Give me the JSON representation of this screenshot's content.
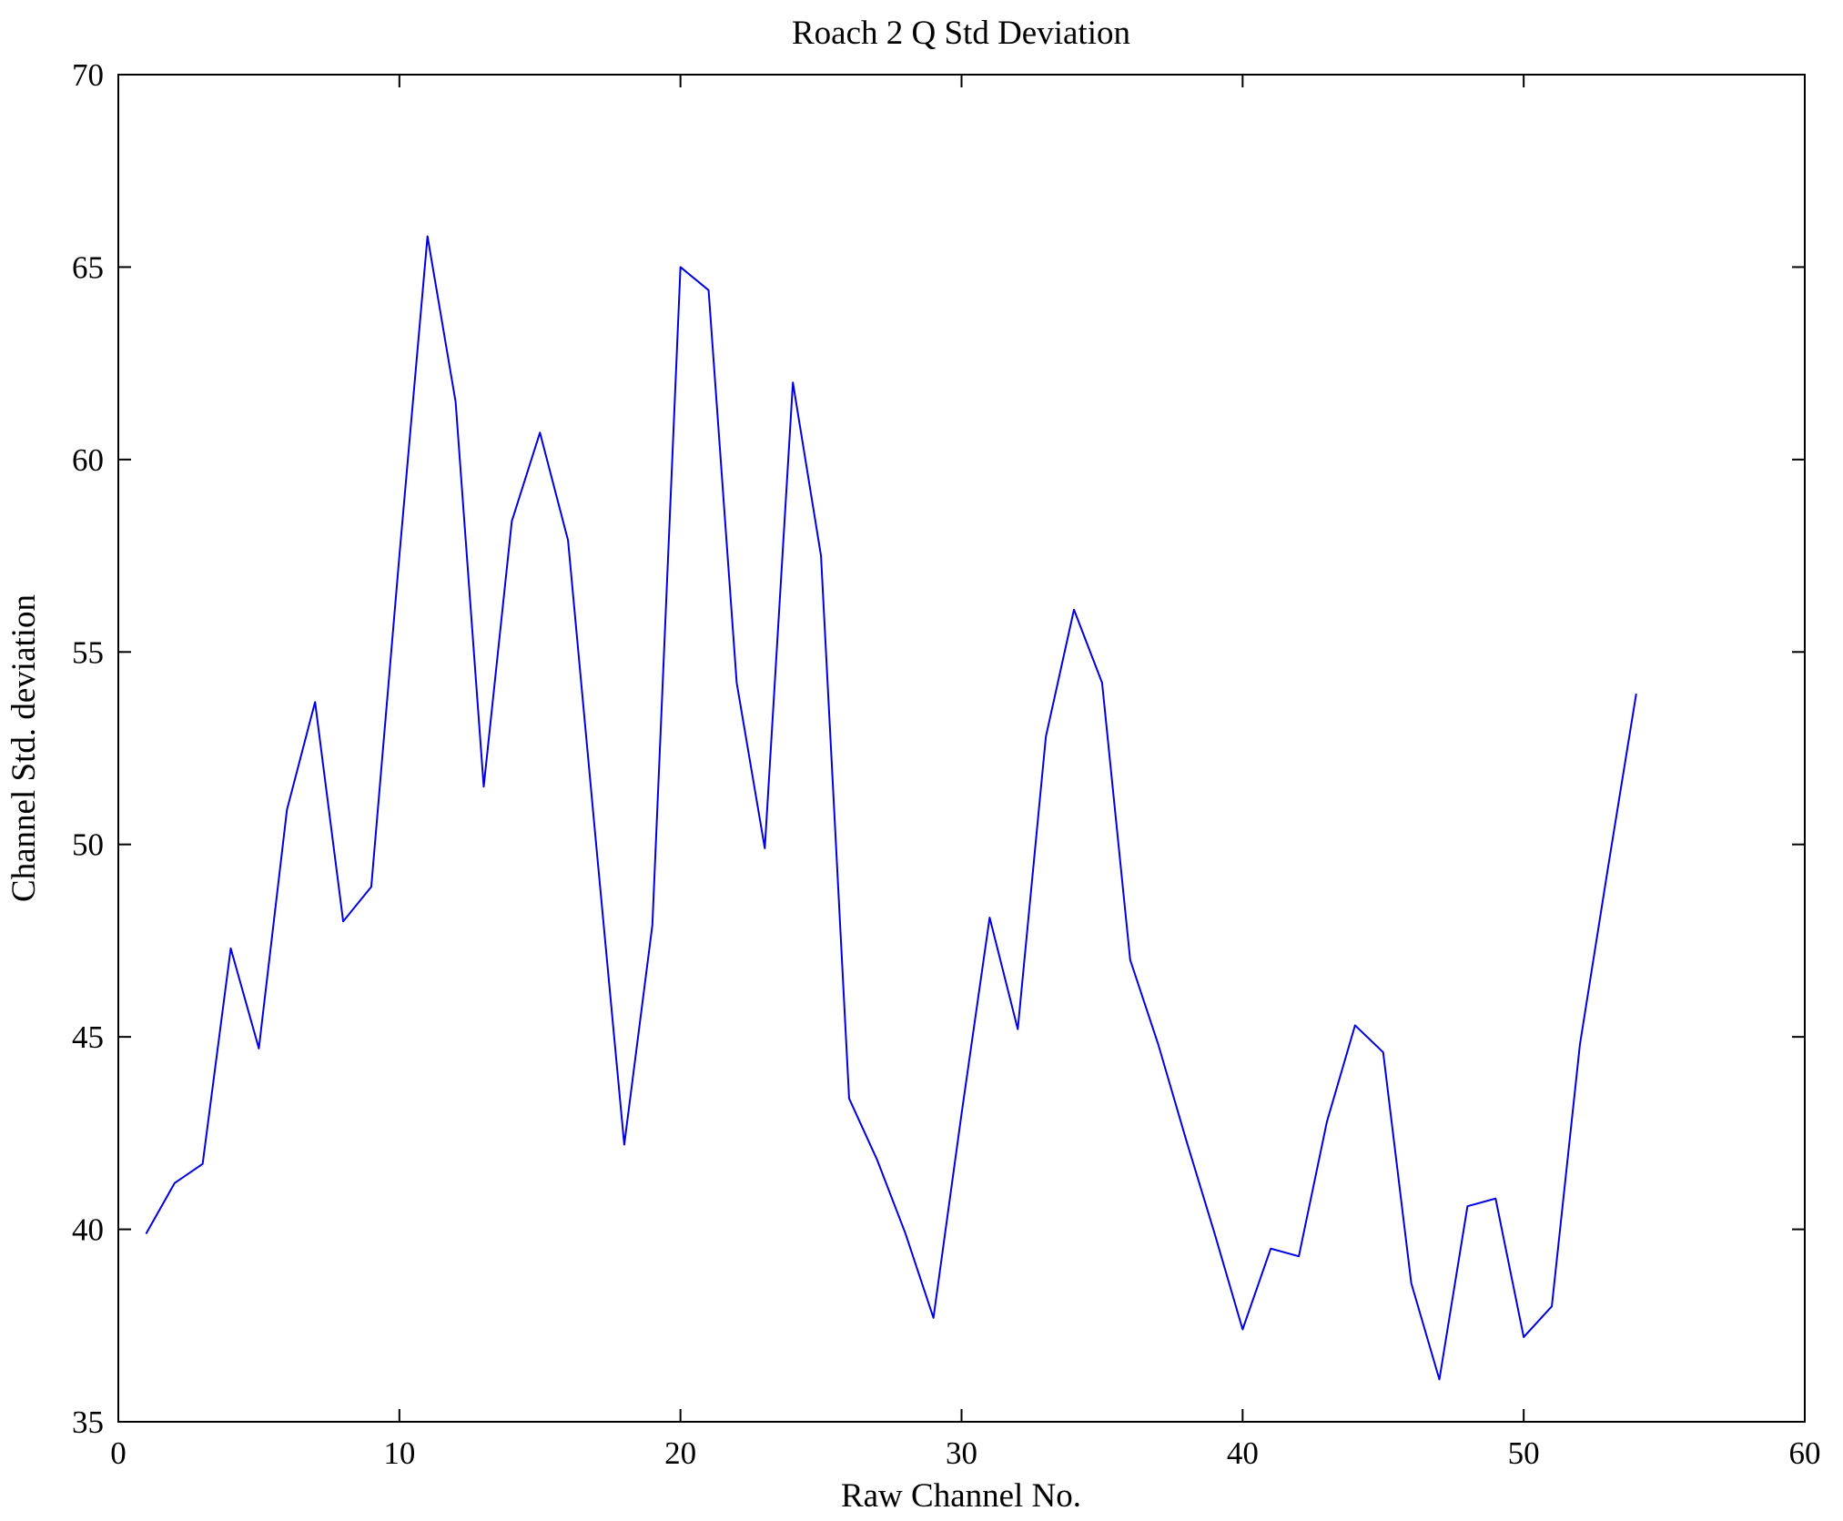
{
  "figure": {
    "title": "Roach 2 Q Std Deviation",
    "xlabel": "Raw Channel No.",
    "ylabel": "Channel Std. deviation"
  },
  "chart_data": {
    "type": "line",
    "title": "Roach 2 Q Std Deviation",
    "xlabel": "Raw Channel No.",
    "ylabel": "Channel Std. deviation",
    "xlim": [
      0,
      60
    ],
    "ylim": [
      35,
      70
    ],
    "xticks": [
      0,
      10,
      20,
      30,
      40,
      50,
      60
    ],
    "yticks": [
      35,
      40,
      45,
      50,
      55,
      60,
      65,
      70
    ],
    "grid": false,
    "legend": null,
    "frame_color": "#000000",
    "line_color": "#0000e0",
    "line_width": 2,
    "series": [
      {
        "name": "Channel Std. deviation",
        "x": [
          1,
          2,
          3,
          4,
          5,
          6,
          7,
          8,
          9,
          10,
          11,
          12,
          13,
          14,
          15,
          16,
          17,
          18,
          19,
          20,
          21,
          22,
          23,
          24,
          25,
          26,
          27,
          28,
          29,
          30,
          31,
          32,
          33,
          34,
          35,
          36,
          37,
          38,
          39,
          40,
          41,
          42,
          43,
          44,
          45,
          46,
          47,
          48,
          49,
          50,
          51,
          52,
          53,
          54
        ],
        "y": [
          39.9,
          41.2,
          41.7,
          47.3,
          44.7,
          50.9,
          53.7,
          48.0,
          48.9,
          57.5,
          65.8,
          61.5,
          51.5,
          58.4,
          60.7,
          57.9,
          50.0,
          42.2,
          47.9,
          65.0,
          64.4,
          54.2,
          49.9,
          62.0,
          57.5,
          43.4,
          41.8,
          39.9,
          37.7,
          43.0,
          48.1,
          45.2,
          52.8,
          56.1,
          54.2,
          47.0,
          44.8,
          42.3,
          39.9,
          37.4,
          39.5,
          39.3,
          42.8,
          45.3,
          44.6,
          38.6,
          36.1,
          40.6,
          40.8,
          37.2,
          38.0,
          44.8,
          49.4,
          53.9
        ]
      }
    ]
  }
}
